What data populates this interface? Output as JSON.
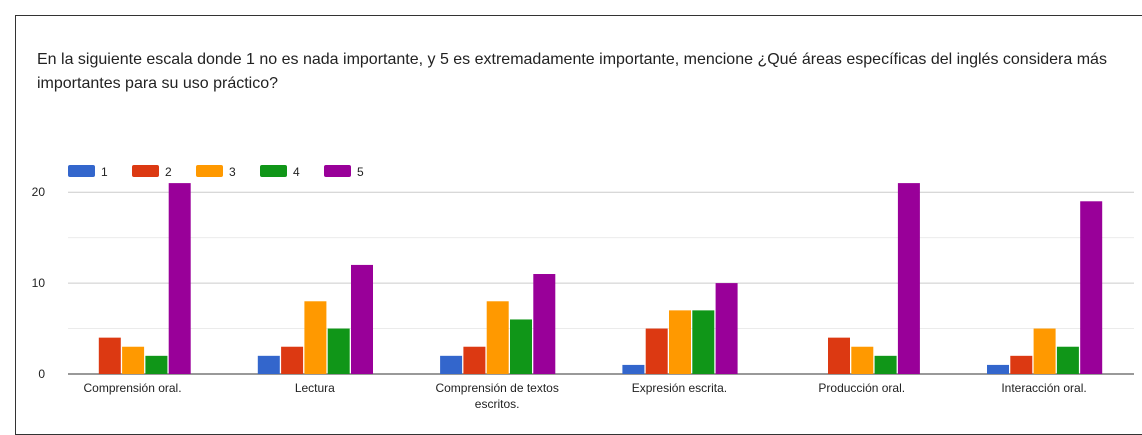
{
  "chart_data": {
    "type": "bar",
    "title": "En la siguiente escala donde 1 no es nada importante, y 5 es extremadamente importante, mencione ¿Qué áreas específicas del inglés considera más importantes para su uso práctico?",
    "categories": [
      "Comprensión oral.",
      "Lectura",
      "Comprensión de textos escritos.",
      "Expresión escrita.",
      "Producción oral.",
      "Interacción oral."
    ],
    "series": [
      {
        "name": "1",
        "color": "#3366cc",
        "values": [
          0,
          2,
          2,
          1,
          0,
          1
        ]
      },
      {
        "name": "2",
        "color": "#dc3912",
        "values": [
          4,
          3,
          3,
          5,
          4,
          2
        ]
      },
      {
        "name": "3",
        "color": "#ff9900",
        "values": [
          3,
          8,
          8,
          7,
          3,
          5
        ]
      },
      {
        "name": "4",
        "color": "#109618",
        "values": [
          2,
          5,
          6,
          7,
          2,
          3
        ]
      },
      {
        "name": "5",
        "color": "#990099",
        "values": [
          21,
          12,
          11,
          10,
          21,
          19
        ]
      }
    ],
    "yticks": [
      "0",
      "10",
      "20"
    ],
    "ylim": [
      0,
      22
    ],
    "legend_position": "top-left",
    "grid": true
  }
}
